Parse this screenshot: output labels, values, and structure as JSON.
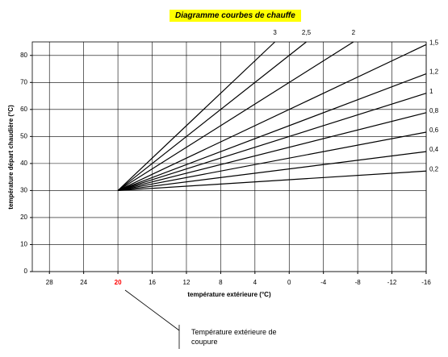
{
  "chart_data": {
    "type": "line",
    "title": "Diagramme courbes de chauffe",
    "x_label": "température extérieure (°C)",
    "y_label": "température départ chaudière (°C)",
    "annotation": "Température extérieure de coupure",
    "xlim": [
      30,
      -16
    ],
    "ylim": [
      0,
      85
    ],
    "xticks": [
      28,
      24,
      20,
      16,
      12,
      8,
      4,
      0,
      -4,
      -8,
      -12,
      -16
    ],
    "yticks": [
      0,
      10,
      20,
      30,
      40,
      50,
      60,
      70,
      80
    ],
    "highlight_xtick_color": "#ff0000",
    "highlight_xtick_index": 2,
    "grid": true,
    "series": [
      {
        "name": "3",
        "color": "#000000",
        "x": [
          20,
          1.67
        ],
        "values": [
          30,
          85
        ]
      },
      {
        "name": "2,5",
        "color": "#000000",
        "x": [
          20,
          -2
        ],
        "values": [
          30,
          85
        ]
      },
      {
        "name": "2",
        "color": "#000000",
        "x": [
          20,
          -7.5
        ],
        "values": [
          30,
          85
        ]
      },
      {
        "name": "1,5",
        "color": "#000000",
        "x": [
          20,
          -16
        ],
        "values": [
          30,
          84
        ]
      },
      {
        "name": "1,2",
        "color": "#000000",
        "x": [
          20,
          -16
        ],
        "values": [
          30,
          73.2
        ]
      },
      {
        "name": "1",
        "color": "#000000",
        "x": [
          20,
          -16
        ],
        "values": [
          30,
          66
        ]
      },
      {
        "name": "0,8",
        "color": "#000000",
        "x": [
          20,
          -16
        ],
        "values": [
          30,
          58.8
        ]
      },
      {
        "name": "0,6",
        "color": "#000000",
        "x": [
          20,
          -16
        ],
        "values": [
          30,
          51.6
        ]
      },
      {
        "name": "0,4",
        "color": "#000000",
        "x": [
          20,
          -16
        ],
        "values": [
          30,
          44.4
        ]
      },
      {
        "name": "0,2",
        "color": "#000000",
        "x": [
          20,
          -16
        ],
        "values": [
          30,
          37.2
        ]
      }
    ]
  }
}
